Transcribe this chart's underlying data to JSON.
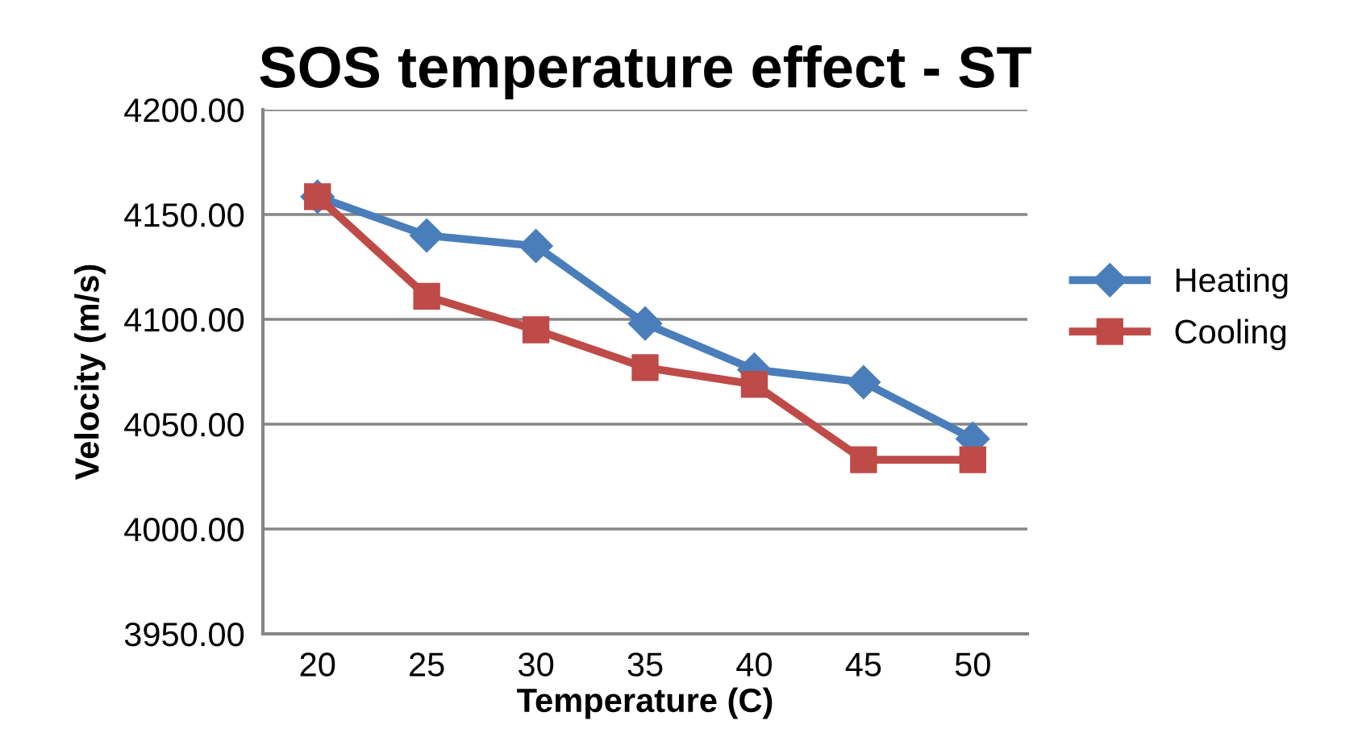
{
  "chart_data": {
    "type": "line",
    "title": "SOS temperature effect - ST",
    "xlabel": "Temperature (C)",
    "ylabel": "Velocity (m/s)",
    "categories": [
      "20",
      "25",
      "30",
      "35",
      "40",
      "45",
      "50"
    ],
    "series": [
      {
        "name": "Heating",
        "color": "#4a7ebb",
        "marker": "diamond",
        "values": [
          4158.5,
          4140,
          4135,
          4098,
          4076,
          4070,
          4043
        ]
      },
      {
        "name": "Cooling",
        "color": "#be4b48",
        "marker": "square",
        "values": [
          4158.5,
          4111,
          4095,
          4077,
          4069,
          4033,
          4033
        ]
      }
    ],
    "ylim": [
      3950,
      4200
    ],
    "yticks": [
      {
        "value": 3950,
        "label": "3950.00"
      },
      {
        "value": 4000,
        "label": "4000.00"
      },
      {
        "value": 4050,
        "label": "4050.00"
      },
      {
        "value": 4100,
        "label": "4100.00"
      },
      {
        "value": 4150,
        "label": "4150.00"
      },
      {
        "value": 4200,
        "label": "4200.00"
      }
    ],
    "grid": "y",
    "legend": "right",
    "line_style": "solid"
  }
}
